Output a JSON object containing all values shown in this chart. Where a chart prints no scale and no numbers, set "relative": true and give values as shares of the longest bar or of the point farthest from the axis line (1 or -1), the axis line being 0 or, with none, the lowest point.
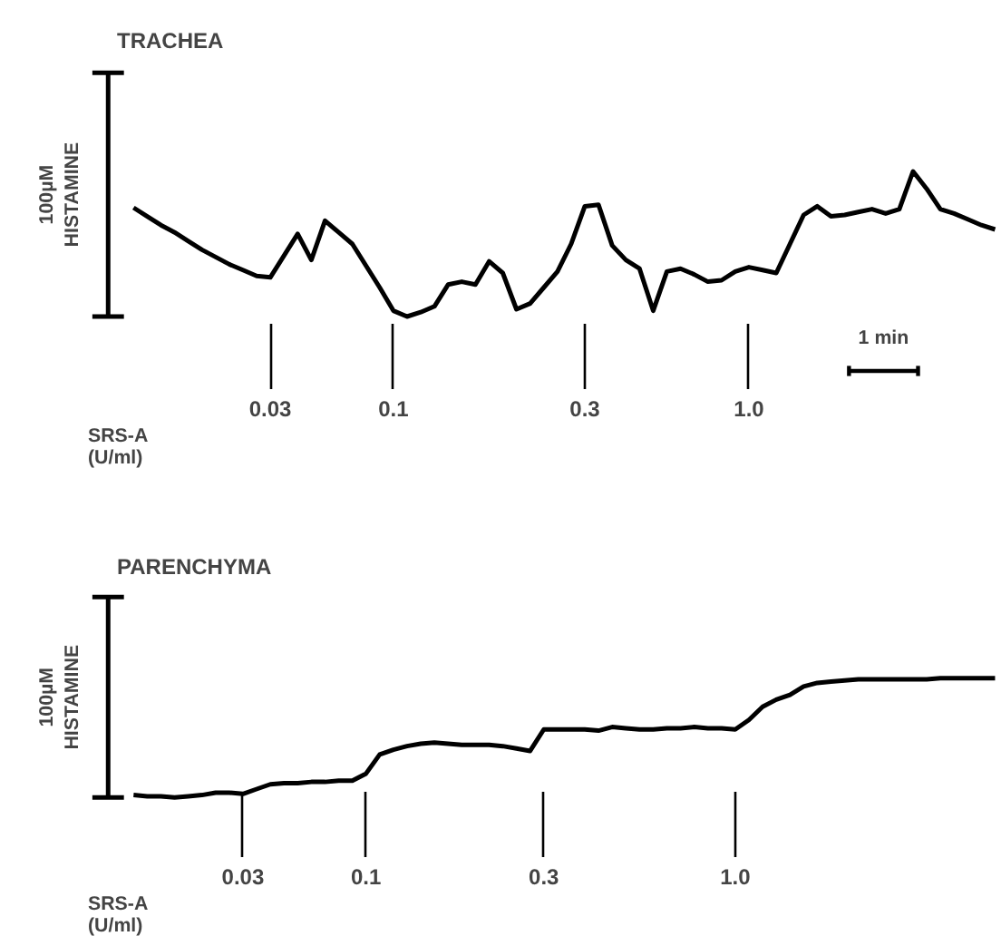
{
  "chart_data": [
    {
      "type": "line",
      "title": "TRACHEA",
      "ylabel": "100µM\nHISTAMINE",
      "relative": true,
      "grid": false,
      "categories": [
        null,
        null,
        null,
        null,
        null,
        null,
        null,
        null,
        null,
        null,
        "0.03",
        null,
        null,
        null,
        null,
        null,
        null,
        null,
        null,
        "0.1",
        null,
        null,
        null,
        null,
        null,
        null,
        null,
        null,
        null,
        null,
        null,
        null,
        null,
        "0.3",
        null,
        null,
        null,
        null,
        null,
        null,
        null,
        null,
        null,
        null,
        null,
        "1.0",
        null,
        null,
        null,
        null,
        null,
        null,
        null,
        null,
        null,
        null,
        null,
        null,
        null,
        null,
        null,
        null,
        null,
        null
      ],
      "series": [
        {
          "color": "#000000",
          "values": [
            0.75,
            0.69,
            0.63,
            0.58,
            0.52,
            0.46,
            0.41,
            0.36,
            0.32,
            0.28,
            0.27,
            0.42,
            0.57,
            0.39,
            0.66,
            0.58,
            0.5,
            0.35,
            0.2,
            0.04,
            0,
            0.03,
            0.07,
            0.22,
            0.24,
            0.22,
            0.38,
            0.3,
            0.05,
            0.09,
            0.2,
            0.31,
            0.5,
            0.76,
            0.77,
            0.49,
            0.39,
            0.33,
            0.04,
            0.31,
            0.33,
            0.29,
            0.24,
            0.25,
            0.31,
            0.34,
            0.32,
            0.3,
            0.5,
            0.7,
            0.76,
            0.69,
            0.7,
            0.72,
            0.74,
            0.71,
            0.74,
            1.0,
            0.88,
            0.74,
            0.71,
            0.67,
            0.63,
            0.6
          ]
        }
      ],
      "annotations": [
        "SRS-A\n(U/ml)",
        "1 min"
      ]
    },
    {
      "type": "line",
      "title": "PARENCHYMA",
      "ylabel": "100µM\nHISTAMINE",
      "relative": true,
      "grid": false,
      "categories": [
        null,
        null,
        null,
        null,
        null,
        null,
        null,
        null,
        "0.03",
        null,
        null,
        null,
        null,
        null,
        null,
        null,
        null,
        "0.1",
        null,
        null,
        null,
        null,
        null,
        null,
        null,
        null,
        null,
        null,
        null,
        null,
        "0.3",
        null,
        null,
        null,
        null,
        null,
        null,
        null,
        null,
        null,
        null,
        null,
        null,
        null,
        "1.0",
        null,
        null,
        null,
        null,
        null,
        null,
        null,
        null,
        null,
        null,
        null,
        null,
        null,
        null,
        null,
        null,
        null,
        null,
        null
      ],
      "series": [
        {
          "color": "#000000",
          "values": [
            0.02,
            0.01,
            0.01,
            0,
            0.01,
            0.02,
            0.04,
            0.04,
            0.03,
            0.07,
            0.11,
            0.12,
            0.12,
            0.13,
            0.13,
            0.14,
            0.14,
            0.2,
            0.36,
            0.4,
            0.43,
            0.45,
            0.46,
            0.45,
            0.44,
            0.44,
            0.44,
            0.43,
            0.41,
            0.39,
            0.57,
            0.57,
            0.57,
            0.57,
            0.56,
            0.59,
            0.58,
            0.57,
            0.57,
            0.58,
            0.58,
            0.59,
            0.58,
            0.58,
            0.57,
            0.65,
            0.76,
            0.82,
            0.86,
            0.93,
            0.96,
            0.97,
            0.98,
            0.99,
            0.99,
            0.99,
            0.99,
            0.99,
            0.99,
            1.0,
            1.0,
            1.0,
            1.0,
            1.0
          ]
        }
      ],
      "annotations": [
        "SRS-A\n(U/ml)"
      ]
    }
  ]
}
